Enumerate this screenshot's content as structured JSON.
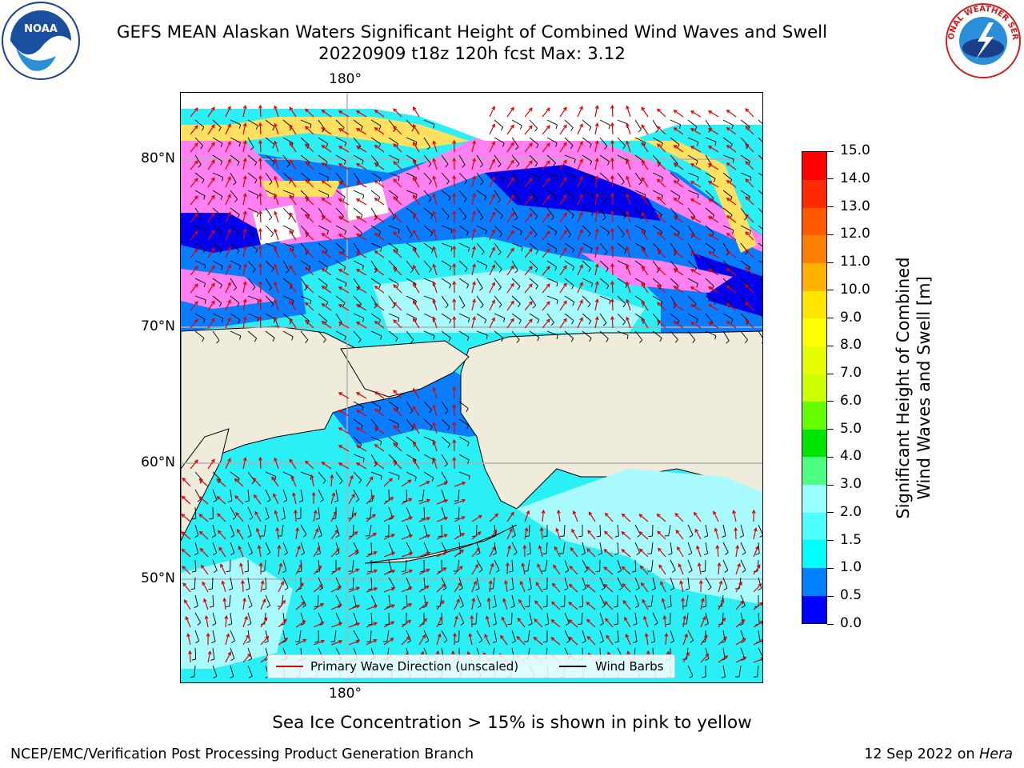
{
  "header": {
    "title_line1": "GEFS MEAN Alaskan Waters Significant Height of Combined Wind Waves and Swell",
    "title_line2": "20220909 t18z 120h fcst   Max: 3.12"
  },
  "logos": {
    "left": {
      "icon": "noaa-logo",
      "text": "NOAA"
    },
    "right": {
      "icon": "nws-logo",
      "text": "NATIONAL WEATHER SERVICE"
    }
  },
  "map": {
    "lon_label_top": "180°",
    "lon_label_bottom": "180°",
    "lat_labels": [
      "80°N",
      "70°N",
      "60°N",
      "50°N"
    ],
    "colors": {
      "land": "#efecdc",
      "ocean_cyan": "#2af0f5",
      "ocean_light": "#a8fafc",
      "ocean_blue": "#0a7cff",
      "ocean_deep": "#0000f0",
      "ice_pink": "#ff80f0",
      "ice_yellow": "#ffe060",
      "wave_arrow": "#e00000",
      "wind_barb": "#000000",
      "grid": "#b0b0b0"
    }
  },
  "colorbar": {
    "title": "Significant Height of Combined Wind Waves and Swell [m]",
    "title_line1": "Significant Height of Combined",
    "title_line2": "Wind Waves and Swell [m]",
    "ticks": [
      "0.0",
      "0.5",
      "1.0",
      "1.5",
      "2.0",
      "3.0",
      "4.0",
      "5.0",
      "6.0",
      "7.0",
      "8.0",
      "9.0",
      "10.0",
      "11.0",
      "12.0",
      "13.0",
      "14.0",
      "15.0"
    ],
    "colors": [
      "#0000ff",
      "#0080ff",
      "#00ffff",
      "#4dffff",
      "#99ffff",
      "#4dff80",
      "#00e600",
      "#66ff00",
      "#ccff00",
      "#e6ff00",
      "#ffff00",
      "#ffe600",
      "#ffb300",
      "#ff8000",
      "#ff5a00",
      "#ff2a00",
      "#ff0000"
    ]
  },
  "legend": {
    "wave_label": "Primary Wave Direction (unscaled)",
    "wind_label": "Wind Barbs"
  },
  "caption": "Sea Ice Concentration > 15% is shown in pink to yellow",
  "footer": {
    "left": "NCEP/EMC/Verification Post Processing Product Generation Branch",
    "right_date": "12 Sep 2022 on",
    "right_host": "Hera"
  }
}
